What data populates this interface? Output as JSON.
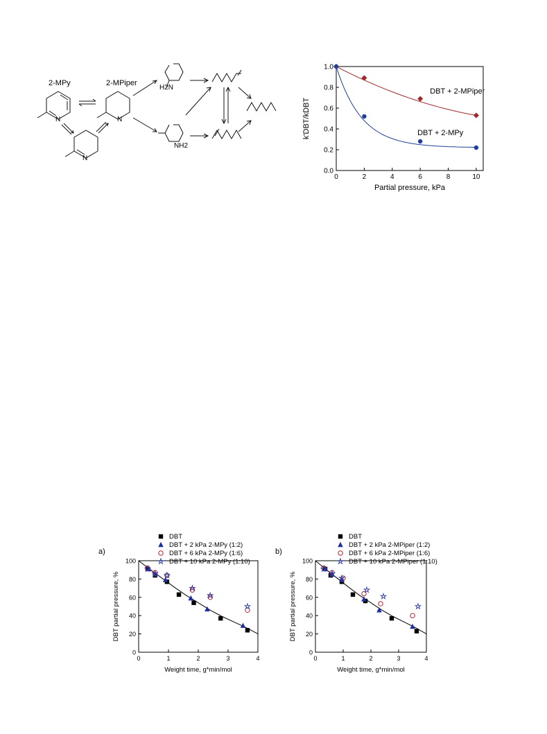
{
  "scheme": {
    "labels": {
      "mpy": "2-MPy",
      "mpiper": "2-MPiper",
      "h2n": "H2N",
      "nh2": "NH2",
      "n": "N"
    }
  },
  "chart_data": [
    {
      "id": "top-right",
      "type": "line",
      "xlabel": "Partial pressure, kPa",
      "ylabel": "k'DBT/kDBT",
      "xlim": [
        0,
        10.5
      ],
      "ylim": [
        0,
        1.0
      ],
      "xticks": [
        0,
        2,
        4,
        6,
        8,
        10
      ],
      "yticks": [
        0.0,
        0.2,
        0.4,
        0.6,
        0.8,
        1.0
      ],
      "series": [
        {
          "name": "DBT + 2-MPiper",
          "color": "#a0282a",
          "marker": "diamond",
          "x": [
            0,
            2,
            6,
            10
          ],
          "y": [
            1.0,
            0.89,
            0.69,
            0.53
          ]
        },
        {
          "name": "DBT + 2-MPy",
          "color": "#1f3f9a",
          "marker": "circle",
          "x": [
            0,
            2,
            6,
            10
          ],
          "y": [
            1.0,
            0.52,
            0.28,
            0.22
          ]
        }
      ]
    },
    {
      "id": "a",
      "panel_label": "a)",
      "type": "scatter",
      "xlabel": "Weight time, g*min/mol",
      "ylabel": "DBT partial pressure, %",
      "xlim": [
        0,
        4
      ],
      "ylim": [
        0,
        100
      ],
      "xticks": [
        0,
        1,
        2,
        3,
        4
      ],
      "yticks": [
        0,
        20,
        40,
        60,
        80,
        100
      ],
      "fit_curve": {
        "x": [
          0,
          0.4,
          0.8,
          1.2,
          1.6,
          2.0,
          2.4,
          2.8,
          3.2,
          3.6,
          4.0
        ],
        "y": [
          100,
          90,
          80.5,
          71,
          62,
          54,
          46,
          39,
          33,
          27,
          20
        ]
      },
      "series": [
        {
          "name": "DBT",
          "marker": "square",
          "color": "#000000",
          "x": [
            0.3,
            0.55,
            0.95,
            1.35,
            1.85,
            2.75,
            3.65
          ],
          "y": [
            91,
            84,
            77,
            63,
            54,
            37,
            24
          ]
        },
        {
          "name": "DBT + 2 kPa 2-MPy (1:2)",
          "marker": "triangle",
          "color": "#1f2fa0",
          "x": [
            0.35,
            0.55,
            0.9,
            1.75,
            2.3,
            3.5
          ],
          "y": [
            91,
            85,
            79,
            59,
            47,
            29
          ]
        },
        {
          "name": "DBT + 6 kPa 2-MPy (1:6)",
          "marker": "circle-open",
          "color": "#c02030",
          "x": [
            0.3,
            0.55,
            0.95,
            1.8,
            2.4,
            3.65
          ],
          "y": [
            92,
            87,
            84,
            68,
            60,
            46
          ]
        },
        {
          "name": "DBT + 10 kPa 2-MPy (1:10)",
          "marker": "star-open",
          "color": "#2a3aa0",
          "x": [
            0.3,
            0.55,
            0.95,
            1.8,
            2.4,
            3.65
          ],
          "y": [
            91,
            86,
            84,
            70,
            62,
            50
          ]
        }
      ]
    },
    {
      "id": "b",
      "panel_label": "b)",
      "type": "scatter",
      "xlabel": "Weight time, g*min/mol",
      "ylabel": "DBT partial pressure, %",
      "xlim": [
        0,
        4
      ],
      "ylim": [
        0,
        100
      ],
      "xticks": [
        0,
        1,
        2,
        3,
        4
      ],
      "yticks": [
        0,
        20,
        40,
        60,
        80,
        100
      ],
      "fit_curve": {
        "x": [
          0,
          0.4,
          0.8,
          1.2,
          1.6,
          2.0,
          2.4,
          2.8,
          3.2,
          3.6,
          4.0
        ],
        "y": [
          100,
          90,
          80.5,
          71,
          62,
          54,
          46,
          39,
          33,
          27,
          20
        ]
      },
      "series": [
        {
          "name": "DBT",
          "marker": "square",
          "color": "#000000",
          "x": [
            0.35,
            0.55,
            0.95,
            1.35,
            1.8,
            2.75,
            3.65
          ],
          "y": [
            91,
            84,
            77,
            63,
            56,
            37,
            23
          ]
        },
        {
          "name": "DBT + 2 kPa 2-MPiper (1:2)",
          "marker": "triangle",
          "color": "#1f2fa0",
          "x": [
            0.35,
            0.6,
            0.95,
            1.75,
            2.3,
            3.5
          ],
          "y": [
            91,
            85,
            79,
            58,
            46,
            28
          ]
        },
        {
          "name": "DBT + 6 kPa 2-MPiper (1:6)",
          "marker": "circle-open",
          "color": "#c02030",
          "x": [
            0.3,
            0.6,
            1.0,
            1.75,
            2.35,
            3.5
          ],
          "y": [
            92,
            87,
            81,
            64,
            53,
            40
          ]
        },
        {
          "name": "DBT + 10 kPa 2-MPiper (1:10)",
          "marker": "star-open",
          "color": "#2a3aa0",
          "x": [
            0.3,
            0.6,
            0.95,
            1.85,
            2.45,
            3.7
          ],
          "y": [
            91,
            86,
            81,
            68,
            61,
            50
          ]
        }
      ]
    }
  ]
}
